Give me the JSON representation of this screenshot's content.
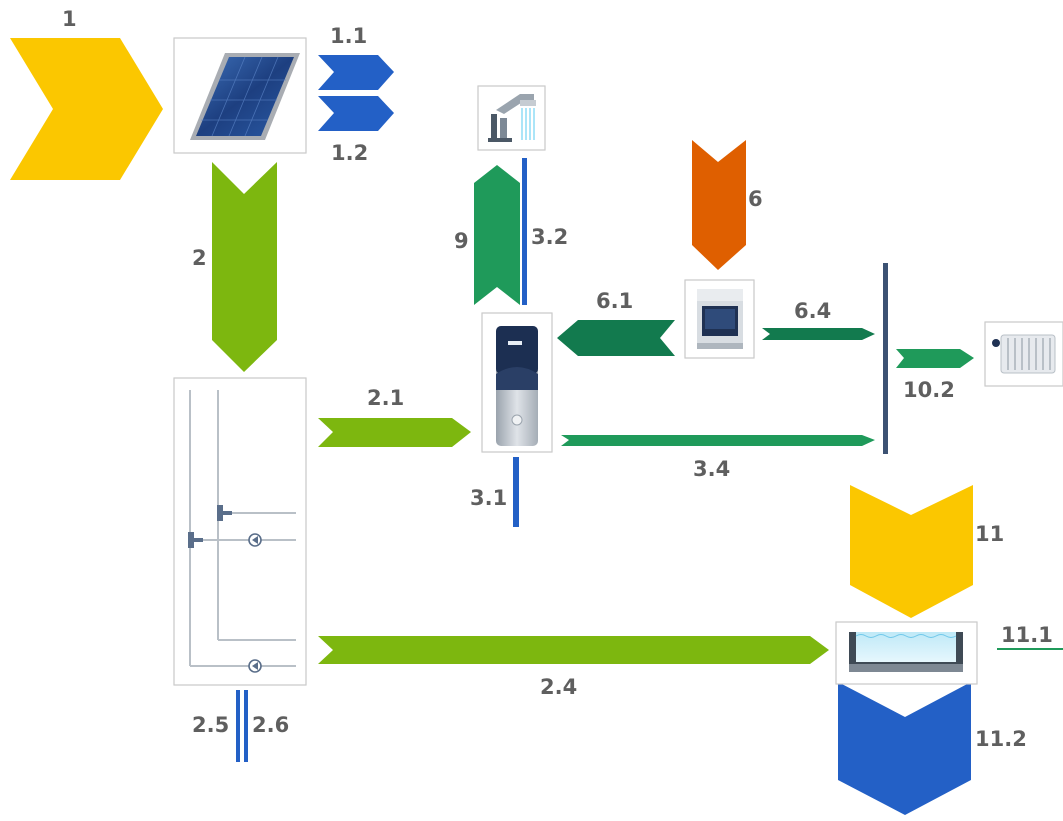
{
  "colors": {
    "yellow": "#fbc700",
    "green": "#7db70f",
    "blue": "#2360c6",
    "dark_green": "#127a4e",
    "mid_green": "#1f9a5a",
    "orange": "#df5f00",
    "bus": "#3c5273",
    "label": "#5f5f5f"
  },
  "labels": {
    "l1": "1",
    "l1_1": "1.1",
    "l1_2": "1.2",
    "l2": "2",
    "l2_1": "2.1",
    "l2_4": "2.4",
    "l2_5": "2.5",
    "l2_6": "2.6",
    "l3_1": "3.1",
    "l3_2": "3.2",
    "l3_4": "3.4",
    "l6": "6",
    "l6_1": "6.1",
    "l6_4": "6.4",
    "l9": "9",
    "l10_2": "10.2",
    "l11": "11",
    "l11_1": "11.1",
    "l11_2": "11.2"
  },
  "icons": {
    "solar": "solar-panel-icon",
    "hydraulic": "hydraulic-station-icon",
    "shower": "shower-icon",
    "tank": "hot-water-tank-icon",
    "boiler": "boiler-icon",
    "radiator": "radiator-icon",
    "pool": "swimming-pool-icon"
  }
}
